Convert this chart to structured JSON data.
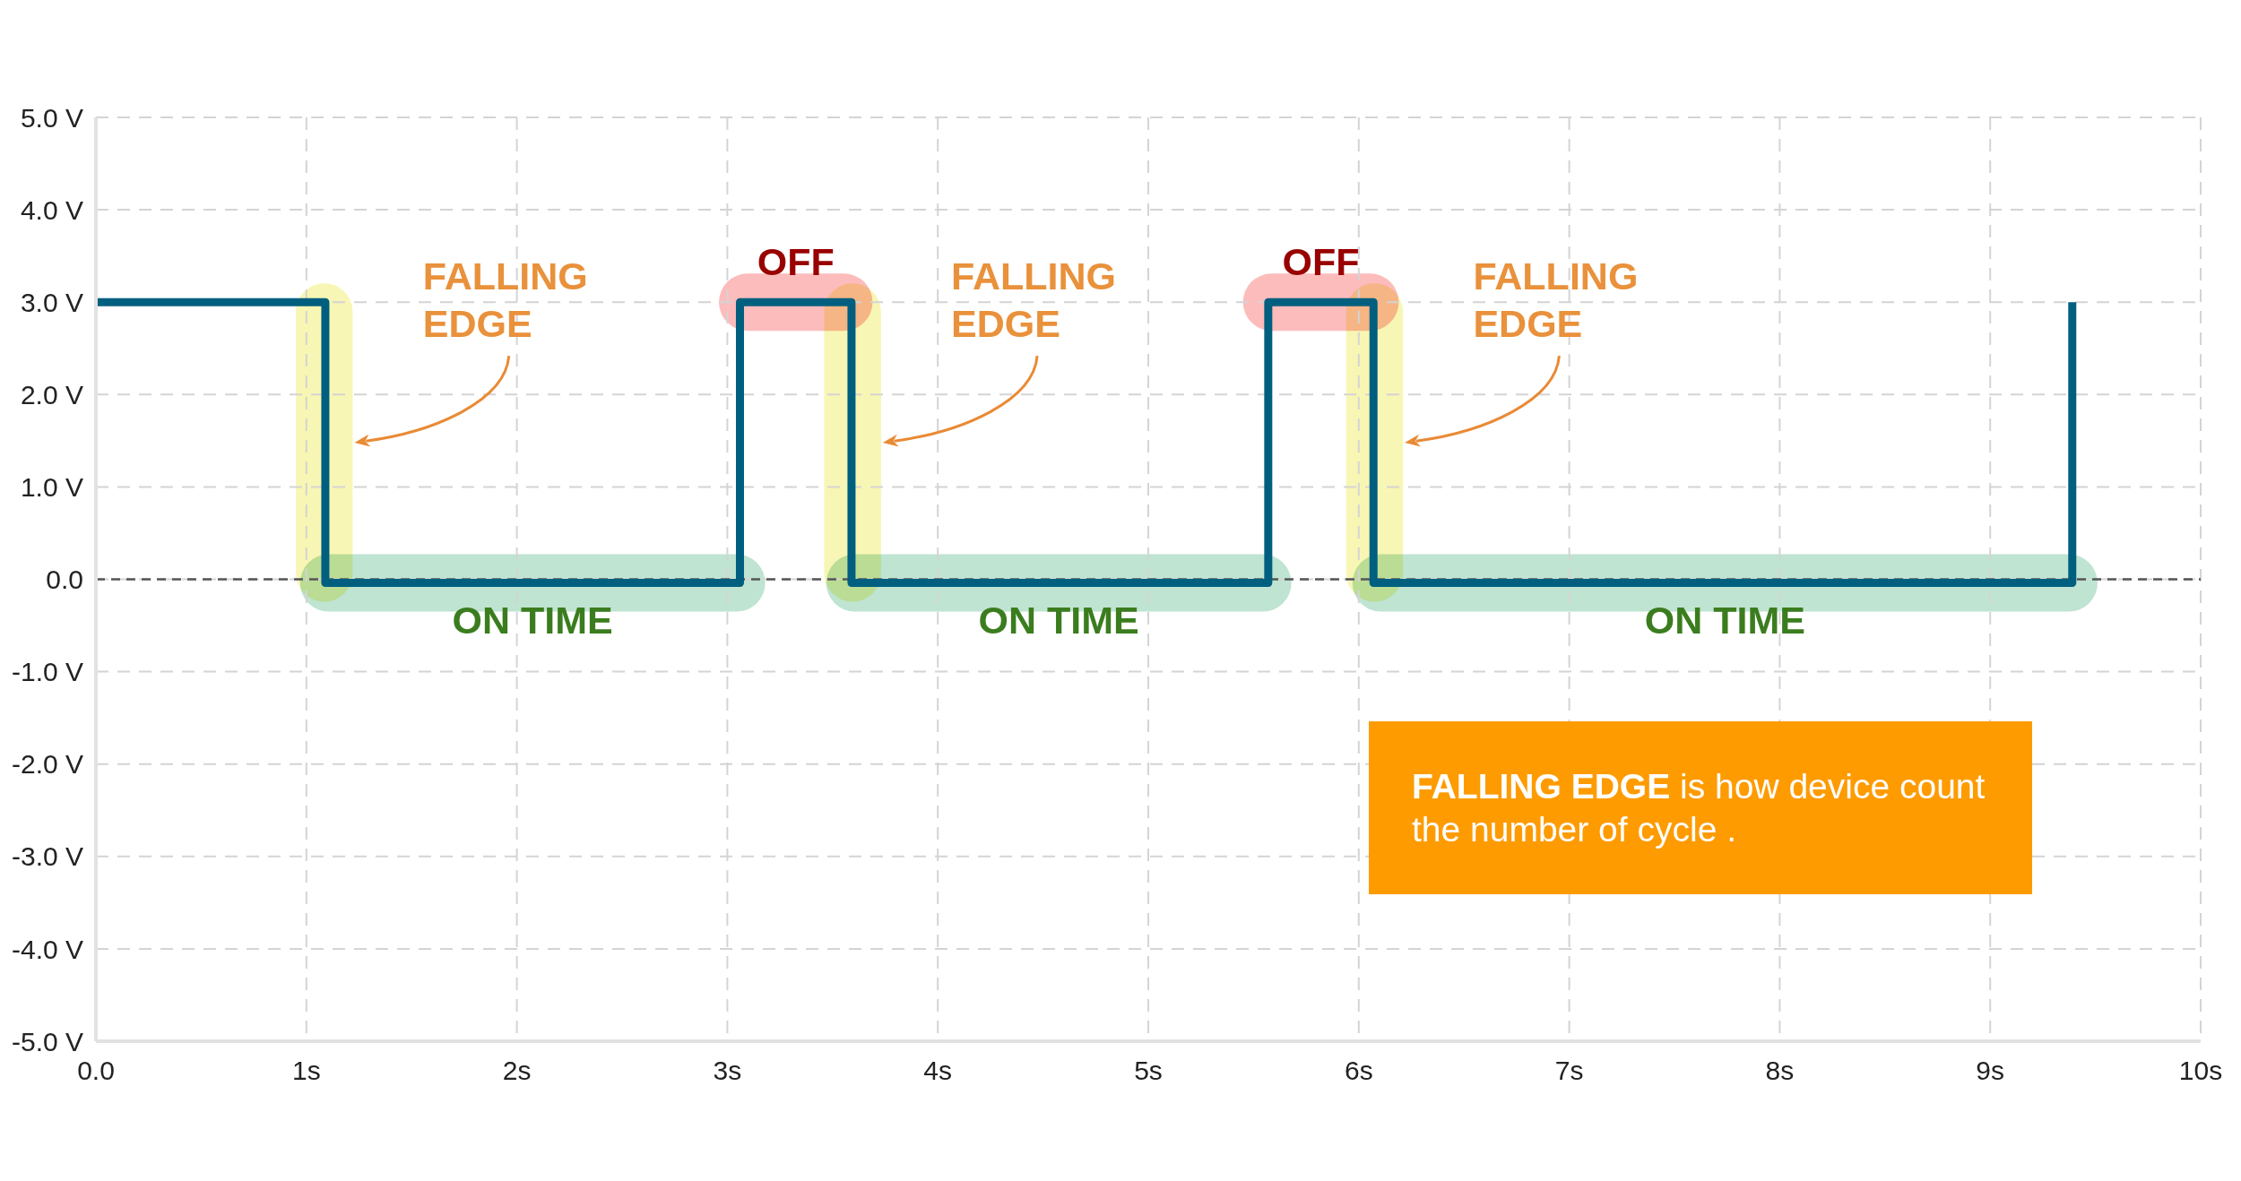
{
  "chart_data": {
    "type": "step",
    "x": [
      0,
      1.09,
      3.06,
      3.59,
      5.57,
      6.07,
      9.39
    ],
    "values": [
      3,
      -0.04,
      3,
      -0.04,
      3,
      -0.04,
      3
    ],
    "color": "#005f7f",
    "xlim": [
      0,
      10
    ],
    "xticks": [
      {
        "value": 0,
        "label": "0.0"
      },
      {
        "value": 1,
        "label": "1s"
      },
      {
        "value": 2,
        "label": "2s"
      },
      {
        "value": 3,
        "label": "3s"
      },
      {
        "value": 4,
        "label": "4s"
      },
      {
        "value": 5,
        "label": "5s"
      },
      {
        "value": 6,
        "label": "6s"
      },
      {
        "value": 7,
        "label": "7s"
      },
      {
        "value": 8,
        "label": "8s"
      },
      {
        "value": 9,
        "label": "9s"
      },
      {
        "value": 10,
        "label": "10s"
      }
    ],
    "ylim": [
      -5,
      5
    ],
    "yticks": [
      {
        "value": -5,
        "label": "-5.0 V"
      },
      {
        "value": -4,
        "label": "-4.0 V"
      },
      {
        "value": -3,
        "label": "-3.0 V"
      },
      {
        "value": -2,
        "label": "-2.0 V"
      },
      {
        "value": -1,
        "label": "-1.0 V"
      },
      {
        "value": 0,
        "label": "0.0"
      },
      {
        "value": 1,
        "label": "1.0 V"
      },
      {
        "value": 2,
        "label": "2.0 V"
      },
      {
        "value": 3,
        "label": "3.0 V"
      },
      {
        "value": 4,
        "label": "4.0 V"
      },
      {
        "value": 5,
        "label": "5.0 V"
      }
    ],
    "grid": true,
    "ref_lines": [
      {
        "axis": "y",
        "value": 0,
        "color": "#555555",
        "line_style": "dashed"
      }
    ],
    "bands": [
      {
        "axis": "x",
        "from": 0.97,
        "to": 3.18,
        "label": "ON TIME",
        "color": "#bfe4d2"
      },
      {
        "axis": "x",
        "from": 3.47,
        "to": 5.68,
        "label": "ON TIME",
        "color": "#bfe4d2"
      },
      {
        "axis": "x",
        "from": 5.97,
        "to": 9.51,
        "label": "ON TIME",
        "color": "#bfe4d2"
      },
      {
        "axis": "x",
        "from": 2.96,
        "to": 3.69,
        "label": "OFF",
        "color": "#fcbcbc"
      },
      {
        "axis": "x",
        "from": 5.45,
        "to": 6.19,
        "label": "OFF",
        "color": "#fcbcbc"
      },
      {
        "axis": "x",
        "from": 0.95,
        "to": 1.22,
        "label": "FALLING EDGE",
        "color": "#f8f6b4"
      },
      {
        "axis": "x",
        "from": 3.46,
        "to": 3.73,
        "label": "FALLING EDGE",
        "color": "#f8f6b4"
      },
      {
        "axis": "x",
        "from": 5.94,
        "to": 6.21,
        "label": "FALLING EDGE",
        "color": "#f8f6b4"
      }
    ],
    "annotations": [
      "FALLING EDGE is how device count the number of cycle ."
    ]
  }
}
